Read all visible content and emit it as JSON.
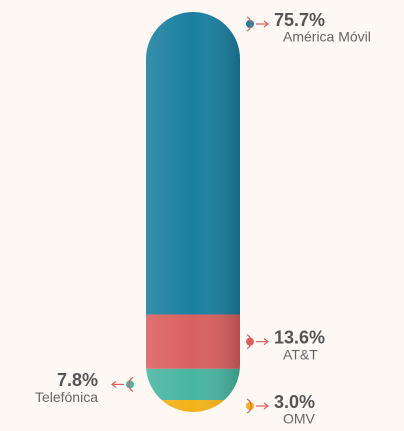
{
  "chart_data": {
    "type": "capsule",
    "categories": [
      "América Móvil",
      "AT&T",
      "Telefónica",
      "OMV"
    ],
    "values": [
      75.7,
      13.6,
      7.8,
      3.0
    ],
    "value_labels": [
      "75.7%",
      "13.6%",
      "7.8%",
      "3.0%"
    ],
    "colors": [
      "#1a7fa0",
      "#d9605f",
      "#47b5a0",
      "#f2b21a"
    ]
  }
}
